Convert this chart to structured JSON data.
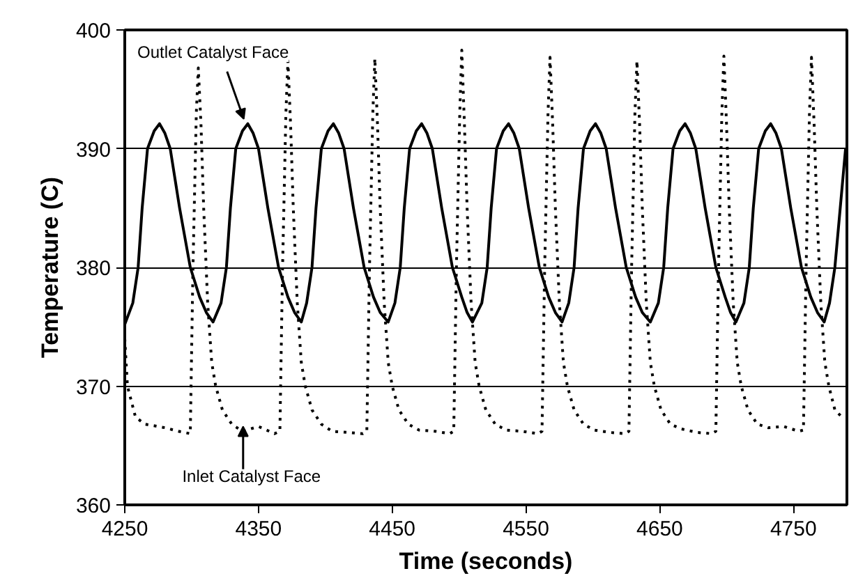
{
  "chart_data": {
    "type": "line",
    "xlabel": "Time (seconds)",
    "ylabel": "Temperature (C)",
    "xlim": [
      4250,
      4790
    ],
    "ylim": [
      360,
      400
    ],
    "xticks": [
      4250,
      4350,
      4450,
      4550,
      4650,
      4750
    ],
    "yticks": [
      360,
      370,
      380,
      390,
      400
    ],
    "grid": "y",
    "series": [
      {
        "color": "#000000",
        "line_style": "solid",
        "x": [
          4250,
          4256,
          4260,
          4263,
          4267,
          4272,
          4276,
          4280,
          4284,
          4291,
          4299,
          4306,
          4311,
          4316,
          4322,
          4326,
          4329,
          4333,
          4338,
          4342,
          4346,
          4350,
          4357,
          4365,
          4372,
          4377,
          4382,
          4386,
          4390,
          4393,
          4397,
          4402,
          4406,
          4410,
          4414,
          4421,
          4429,
          4436,
          4441,
          4447,
          4452,
          4456,
          4459,
          4463,
          4468,
          4472,
          4476,
          4480,
          4487,
          4495,
          4502,
          4506,
          4510,
          4517,
          4521,
          4524,
          4528,
          4533,
          4537,
          4541,
          4545,
          4552,
          4560,
          4567,
          4572,
          4577,
          4582,
          4586,
          4589,
          4593,
          4598,
          4602,
          4606,
          4610,
          4617,
          4625,
          4632,
          4637,
          4643,
          4649,
          4653,
          4656,
          4660,
          4665,
          4669,
          4673,
          4677,
          4684,
          4692,
          4699,
          4703,
          4707,
          4713,
          4717,
          4720,
          4724,
          4729,
          4733,
          4737,
          4741,
          4748,
          4756,
          4763,
          4768,
          4773,
          4777,
          4781,
          4785,
          4789
        ],
        "values": [
          375.2,
          377,
          380,
          385,
          390,
          391.5,
          392.1,
          391.3,
          390,
          385,
          380,
          377.5,
          376.2,
          375.4,
          377,
          380,
          385,
          390,
          391.5,
          392.1,
          391.3,
          390,
          385,
          380,
          377.5,
          376.2,
          375.4,
          377,
          380,
          385,
          390,
          391.5,
          392.1,
          391.3,
          390,
          385,
          380,
          377.5,
          376.2,
          375.4,
          377,
          380,
          385,
          390,
          391.5,
          392.1,
          391.3,
          390,
          385,
          380,
          377.5,
          376.2,
          375.4,
          377,
          380,
          385,
          390,
          391.5,
          392.1,
          391.3,
          390,
          385,
          380,
          377.5,
          376.2,
          375.4,
          377,
          380,
          385,
          390,
          391.5,
          392.1,
          391.3,
          390,
          385,
          380,
          377.5,
          376.2,
          375.4,
          377,
          380,
          385,
          390,
          391.5,
          392.1,
          391.3,
          390,
          385,
          380,
          377.5,
          376.2,
          375.4,
          377,
          380,
          385,
          390,
          391.5,
          392.1,
          391.3,
          390,
          385,
          380,
          377.5,
          376.2,
          375.4,
          377,
          380,
          385,
          390
        ]
      },
      {
        "color": "#000000",
        "line_style": "dotted",
        "x": [
          4250,
          4252,
          4258,
          4265,
          4280,
          4290,
          4299,
          4301,
          4303.5,
          4305,
          4307,
          4309,
          4312,
          4315,
          4318,
          4323,
          4330,
          4338,
          4350,
          4362,
          4366,
          4368,
          4370.5,
          4372,
          4374,
          4376,
          4379,
          4382,
          4385,
          4390,
          4397,
          4405,
          4417,
          4428,
          4431,
          4433,
          4435.5,
          4437,
          4439,
          4441,
          4444,
          4447,
          4450,
          4455,
          4462,
          4470,
          4482,
          4493,
          4496,
          4498,
          4500.5,
          4502,
          4504,
          4506,
          4509,
          4512,
          4515,
          4520,
          4527,
          4535,
          4547,
          4559,
          4562,
          4564,
          4566.5,
          4568,
          4570,
          4572,
          4575,
          4578,
          4581,
          4586,
          4593,
          4601,
          4613,
          4624,
          4627,
          4629,
          4631.5,
          4633,
          4635,
          4637,
          4640,
          4643,
          4646,
          4651,
          4658,
          4666,
          4678,
          4689,
          4692,
          4694,
          4696.5,
          4698,
          4700,
          4702,
          4705,
          4708,
          4711,
          4716,
          4723,
          4731,
          4743,
          4754,
          4757.5,
          4759.5,
          4762,
          4763.5,
          4765.5,
          4767.5,
          4770.5,
          4773.5,
          4776.5,
          4781,
          4788
        ],
        "values": [
          374,
          370,
          367.4,
          366.8,
          366.5,
          366.2,
          366,
          380,
          393,
          396.8,
          392,
          385,
          377,
          372,
          370,
          368,
          366.8,
          366.2,
          366.6,
          366,
          366.2,
          380,
          393,
          397.4,
          392,
          385,
          377,
          372,
          370,
          368,
          366.8,
          366.2,
          366.1,
          366,
          366.2,
          380,
          393,
          397.6,
          392,
          385,
          377,
          372,
          370,
          368,
          366.8,
          366.3,
          366.2,
          366,
          366.2,
          380,
          393,
          398.3,
          392,
          385,
          377,
          372,
          370,
          368,
          366.8,
          366.3,
          366.2,
          366,
          366.2,
          380,
          393,
          397.7,
          392,
          385,
          377,
          372,
          370,
          368,
          366.8,
          366.3,
          366.1,
          366,
          366.2,
          380,
          393,
          397.4,
          392,
          385,
          377,
          372,
          370,
          368,
          366.8,
          366.4,
          366.1,
          366,
          366.2,
          380,
          393,
          397.8,
          392,
          385,
          377,
          372,
          370,
          368,
          366.8,
          366.5,
          366.6,
          366.2,
          366.3,
          380,
          393,
          397.7,
          392,
          385,
          377,
          372,
          370,
          368,
          367.2
        ]
      }
    ],
    "annotations": [
      {
        "text": "Outlet Catalyst Face",
        "x": 4339,
        "y": 392.5
      },
      {
        "text": "Inlet Catalyst Face",
        "x": 4338.5,
        "y": 366.6
      }
    ]
  }
}
